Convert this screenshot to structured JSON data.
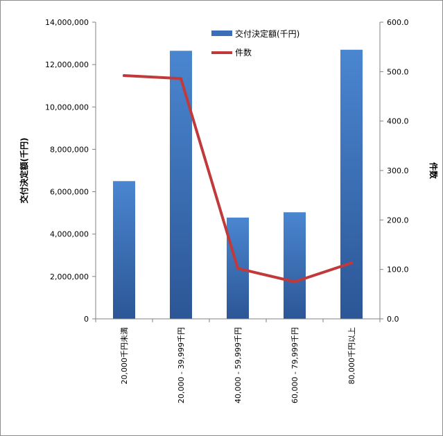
{
  "chart_data": {
    "type": "bar",
    "categories": [
      "20,000千円未満",
      "20,000 - 39,999千円",
      "40,000 - 59,999千円",
      "60,000 - 79,999千円",
      "80,000千円以上"
    ],
    "series": [
      {
        "name": "交付決定額(千円)",
        "type": "bar",
        "axis": "left",
        "color": "#3a6fb7",
        "values": [
          6500000,
          12650000,
          4780000,
          5030000,
          12700000
        ]
      },
      {
        "name": "件数",
        "type": "line",
        "axis": "right",
        "color": "#c0393b",
        "values": [
          492,
          486,
          102,
          75,
          113
        ]
      }
    ],
    "title": "",
    "xlabel": "",
    "ylabel_left": "交付決定額(千円)",
    "ylabel_right": "件数",
    "ylim_left": [
      0,
      14000000
    ],
    "ylim_right": [
      0,
      600
    ],
    "yticks_left": [
      "0",
      "2,000,000",
      "4,000,000",
      "6,000,000",
      "8,000,000",
      "10,000,000",
      "12,000,000",
      "14,000,000"
    ],
    "yticks_right": [
      "0.0",
      "100.0",
      "200.0",
      "300.0",
      "400.0",
      "500.0",
      "600.0"
    ],
    "legend_position": "top-right",
    "grid": false
  }
}
